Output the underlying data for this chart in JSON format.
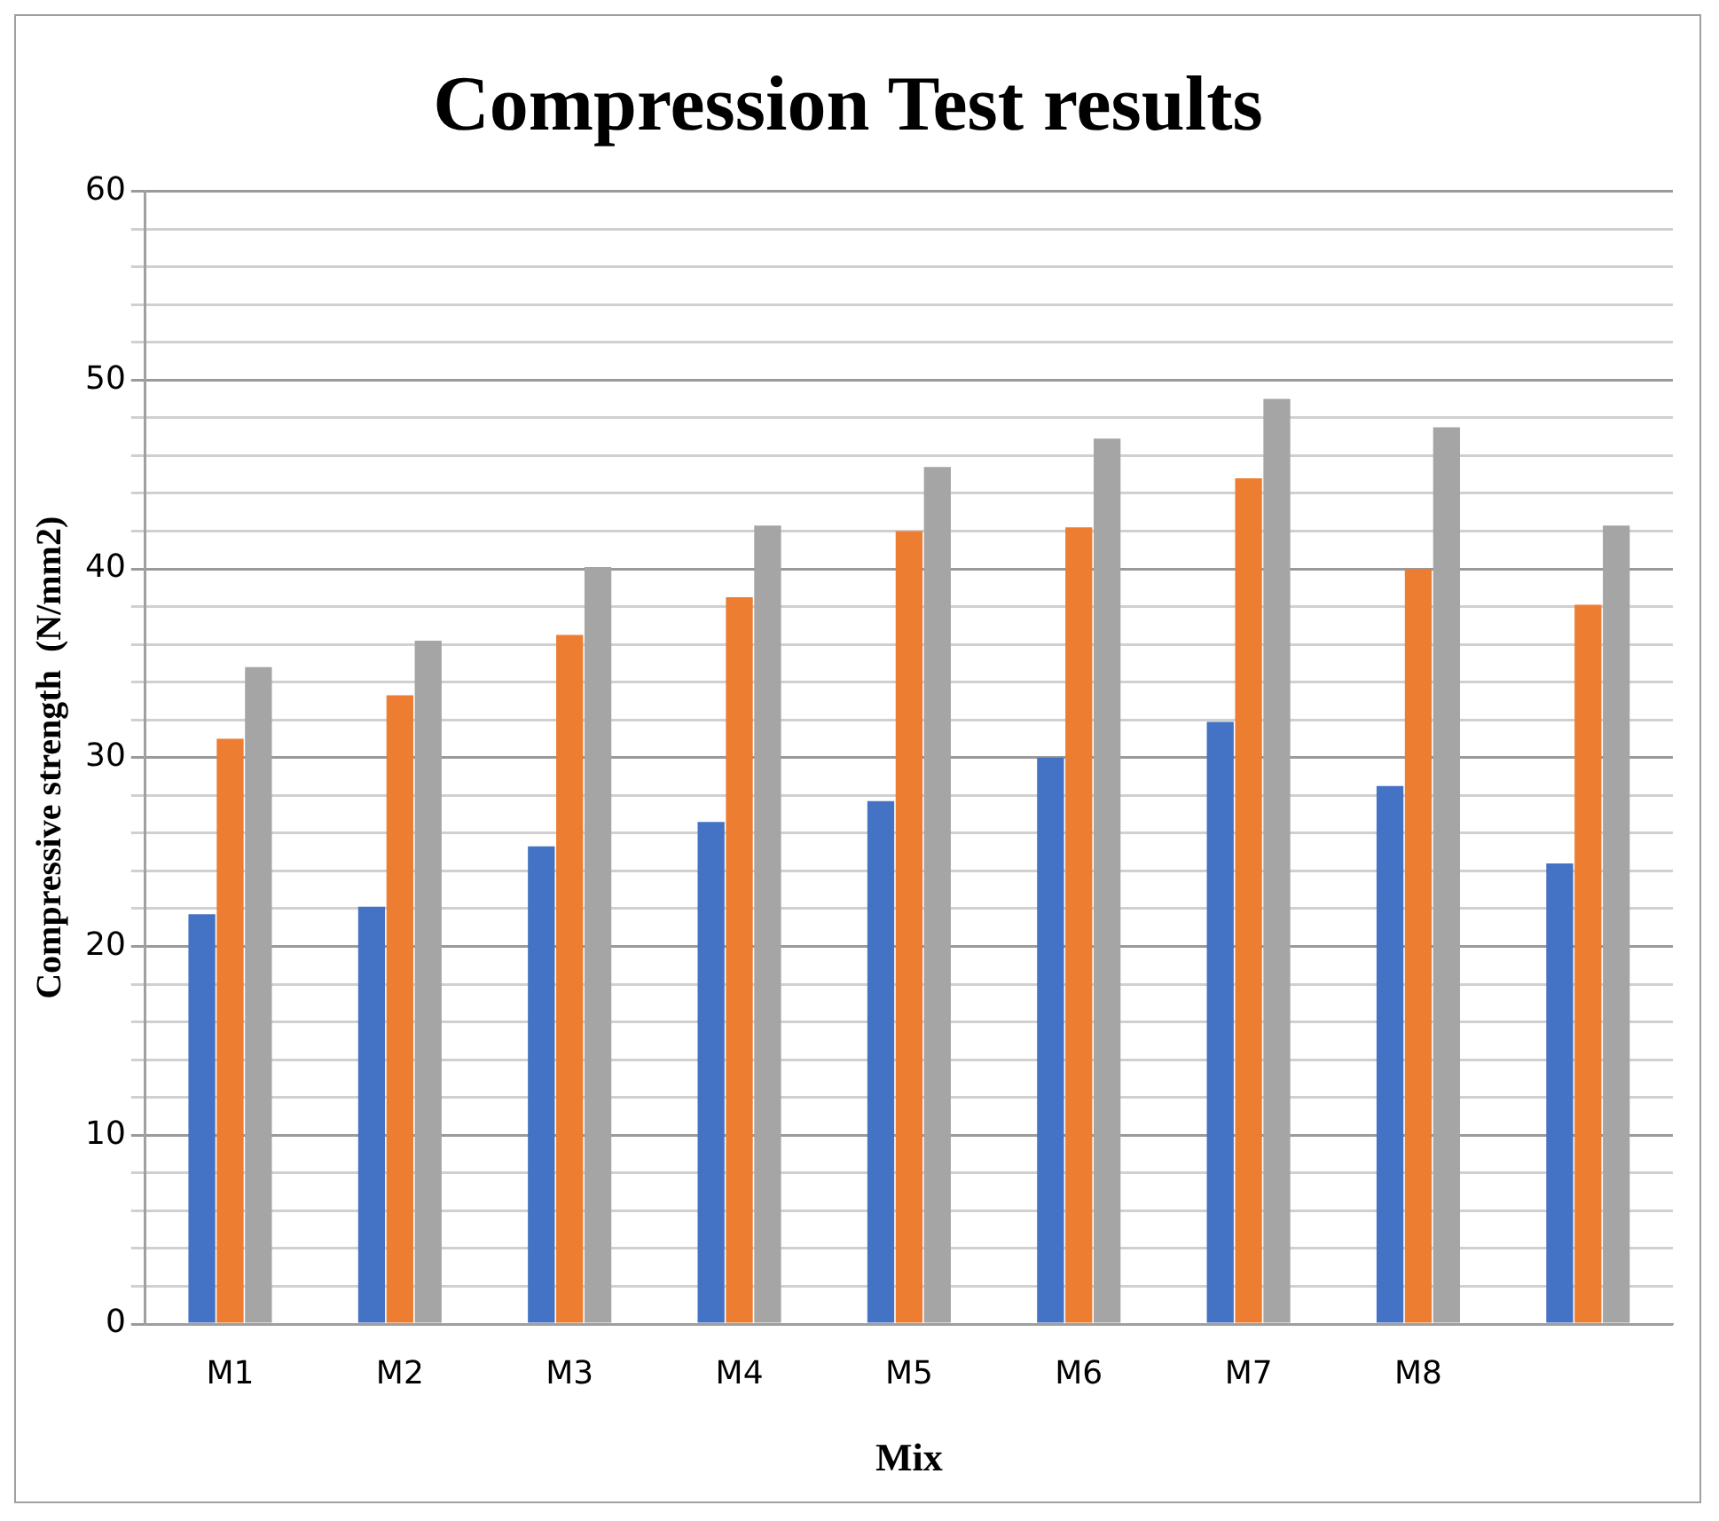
{
  "chart_data": {
    "type": "bar",
    "title": "Compression Test results",
    "xlabel": "Mix",
    "ylabel": "Compressive strength  (N/mm2)",
    "categories": [
      "M1",
      "M2",
      "M3",
      "M4",
      "M5",
      "M6",
      "M7",
      "M8",
      null
    ],
    "series": [
      {
        "color": "#4472c4",
        "values": [
          21.7,
          22.1,
          25.3,
          26.6,
          27.7,
          30.0,
          31.9,
          28.5,
          24.4
        ]
      },
      {
        "color": "#ed7d31",
        "values": [
          31.0,
          33.3,
          36.5,
          38.5,
          42.0,
          42.2,
          44.8,
          40.0,
          38.1
        ]
      },
      {
        "color": "#a5a5a5",
        "values": [
          34.8,
          36.2,
          40.1,
          42.3,
          45.4,
          46.9,
          49.0,
          47.5,
          42.3
        ]
      }
    ],
    "ylim": [
      0,
      60
    ],
    "yticks": [
      0,
      {
        "value": 2,
        "label": null
      },
      {
        "value": 4,
        "label": null
      },
      {
        "value": 6,
        "label": null
      },
      {
        "value": 8,
        "label": null
      },
      10,
      {
        "value": 12,
        "label": null
      },
      {
        "value": 14,
        "label": null
      },
      {
        "value": 16,
        "label": null
      },
      {
        "value": 18,
        "label": null
      },
      20,
      {
        "value": 22,
        "label": null
      },
      {
        "value": 24,
        "label": null
      },
      {
        "value": 26,
        "label": null
      },
      {
        "value": 28,
        "label": null
      },
      30,
      {
        "value": 32,
        "label": null
      },
      {
        "value": 34,
        "label": null
      },
      {
        "value": 36,
        "label": null
      },
      {
        "value": 38,
        "label": null
      },
      40,
      {
        "value": 42,
        "label": null
      },
      {
        "value": 44,
        "label": null
      },
      {
        "value": 46,
        "label": null
      },
      {
        "value": 48,
        "label": null
      },
      50,
      {
        "value": 52,
        "label": null
      },
      {
        "value": 54,
        "label": null
      },
      {
        "value": 56,
        "label": null
      },
      {
        "value": 58,
        "label": null
      },
      60
    ],
    "grid": "y",
    "legend": false
  }
}
